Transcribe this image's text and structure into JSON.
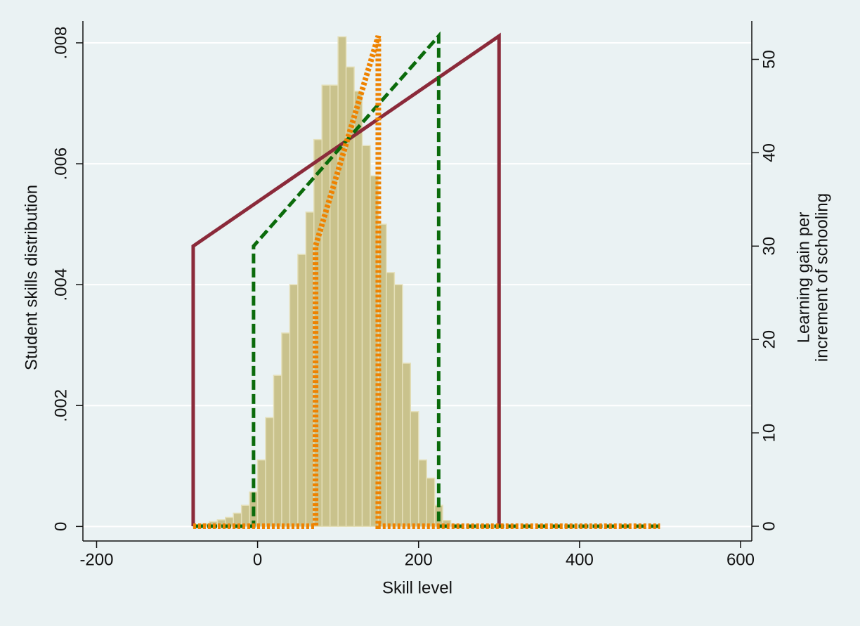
{
  "chart_data": {
    "type": "histogram_lines",
    "xlabel": "Skill level",
    "ylabel": "Student skills distribution",
    "y2label": [
      "Learning gain per",
      "increment of schooling"
    ],
    "xlim": [
      -217,
      614
    ],
    "xticks": [
      -200,
      0,
      200,
      400,
      600
    ],
    "ylim": [
      -0.00024,
      0.00836
    ],
    "yticks": [
      0,
      {
        "value": 0.002,
        "label": ".002"
      },
      {
        "value": 0.004,
        "label": ".004"
      },
      {
        "value": 0.006,
        "label": ".006"
      },
      {
        "value": 0.008,
        "label": ".008"
      }
    ],
    "y2lim": [
      -1.58,
      54.1
    ],
    "y2ticks": [
      0,
      10,
      20,
      30,
      40,
      50
    ],
    "grid": true,
    "histogram": {
      "color": "#c9c28c",
      "bins": [
        -80,
        -70,
        -60,
        -50,
        -40,
        -30,
        -20,
        -10,
        0,
        10,
        20,
        30,
        40,
        50,
        60,
        70,
        80,
        90,
        100,
        110,
        120,
        130,
        140,
        150,
        160,
        170,
        180,
        190,
        200,
        210,
        220,
        230,
        240,
        250
      ],
      "values": [
        3e-05,
        5e-05,
        8e-05,
        0.00011,
        0.00015,
        0.00022,
        0.00035,
        0.00057,
        0.0011,
        0.0018,
        0.0025,
        0.0032,
        0.004,
        0.0045,
        0.0052,
        0.0064,
        0.0073,
        0.0073,
        0.0081,
        0.0076,
        0.0072,
        0.0063,
        0.0058,
        0.005,
        0.0042,
        0.004,
        0.0027,
        0.0019,
        0.0011,
        0.0008,
        0.00035,
        0.0001,
        4e-05
      ]
    },
    "series": [
      {
        "color": "#8b2a3a",
        "style": "solid",
        "axis": "y2",
        "x": [
          -80,
          -80,
          300,
          300
        ],
        "values": [
          0,
          30,
          52.5,
          0
        ]
      },
      {
        "color": "#0b6b0b",
        "style": "dashed",
        "axis": "y2",
        "x": [
          -80,
          -5,
          -5,
          225,
          225,
          500
        ],
        "values": [
          0,
          0,
          30,
          52.5,
          0,
          0
        ]
      },
      {
        "color": "#ee8200",
        "style": "dotted",
        "axis": "y2",
        "x": [
          -80,
          72,
          72,
          150,
          150,
          500
        ],
        "values": [
          0,
          0,
          30,
          52.5,
          0,
          0
        ]
      }
    ]
  }
}
